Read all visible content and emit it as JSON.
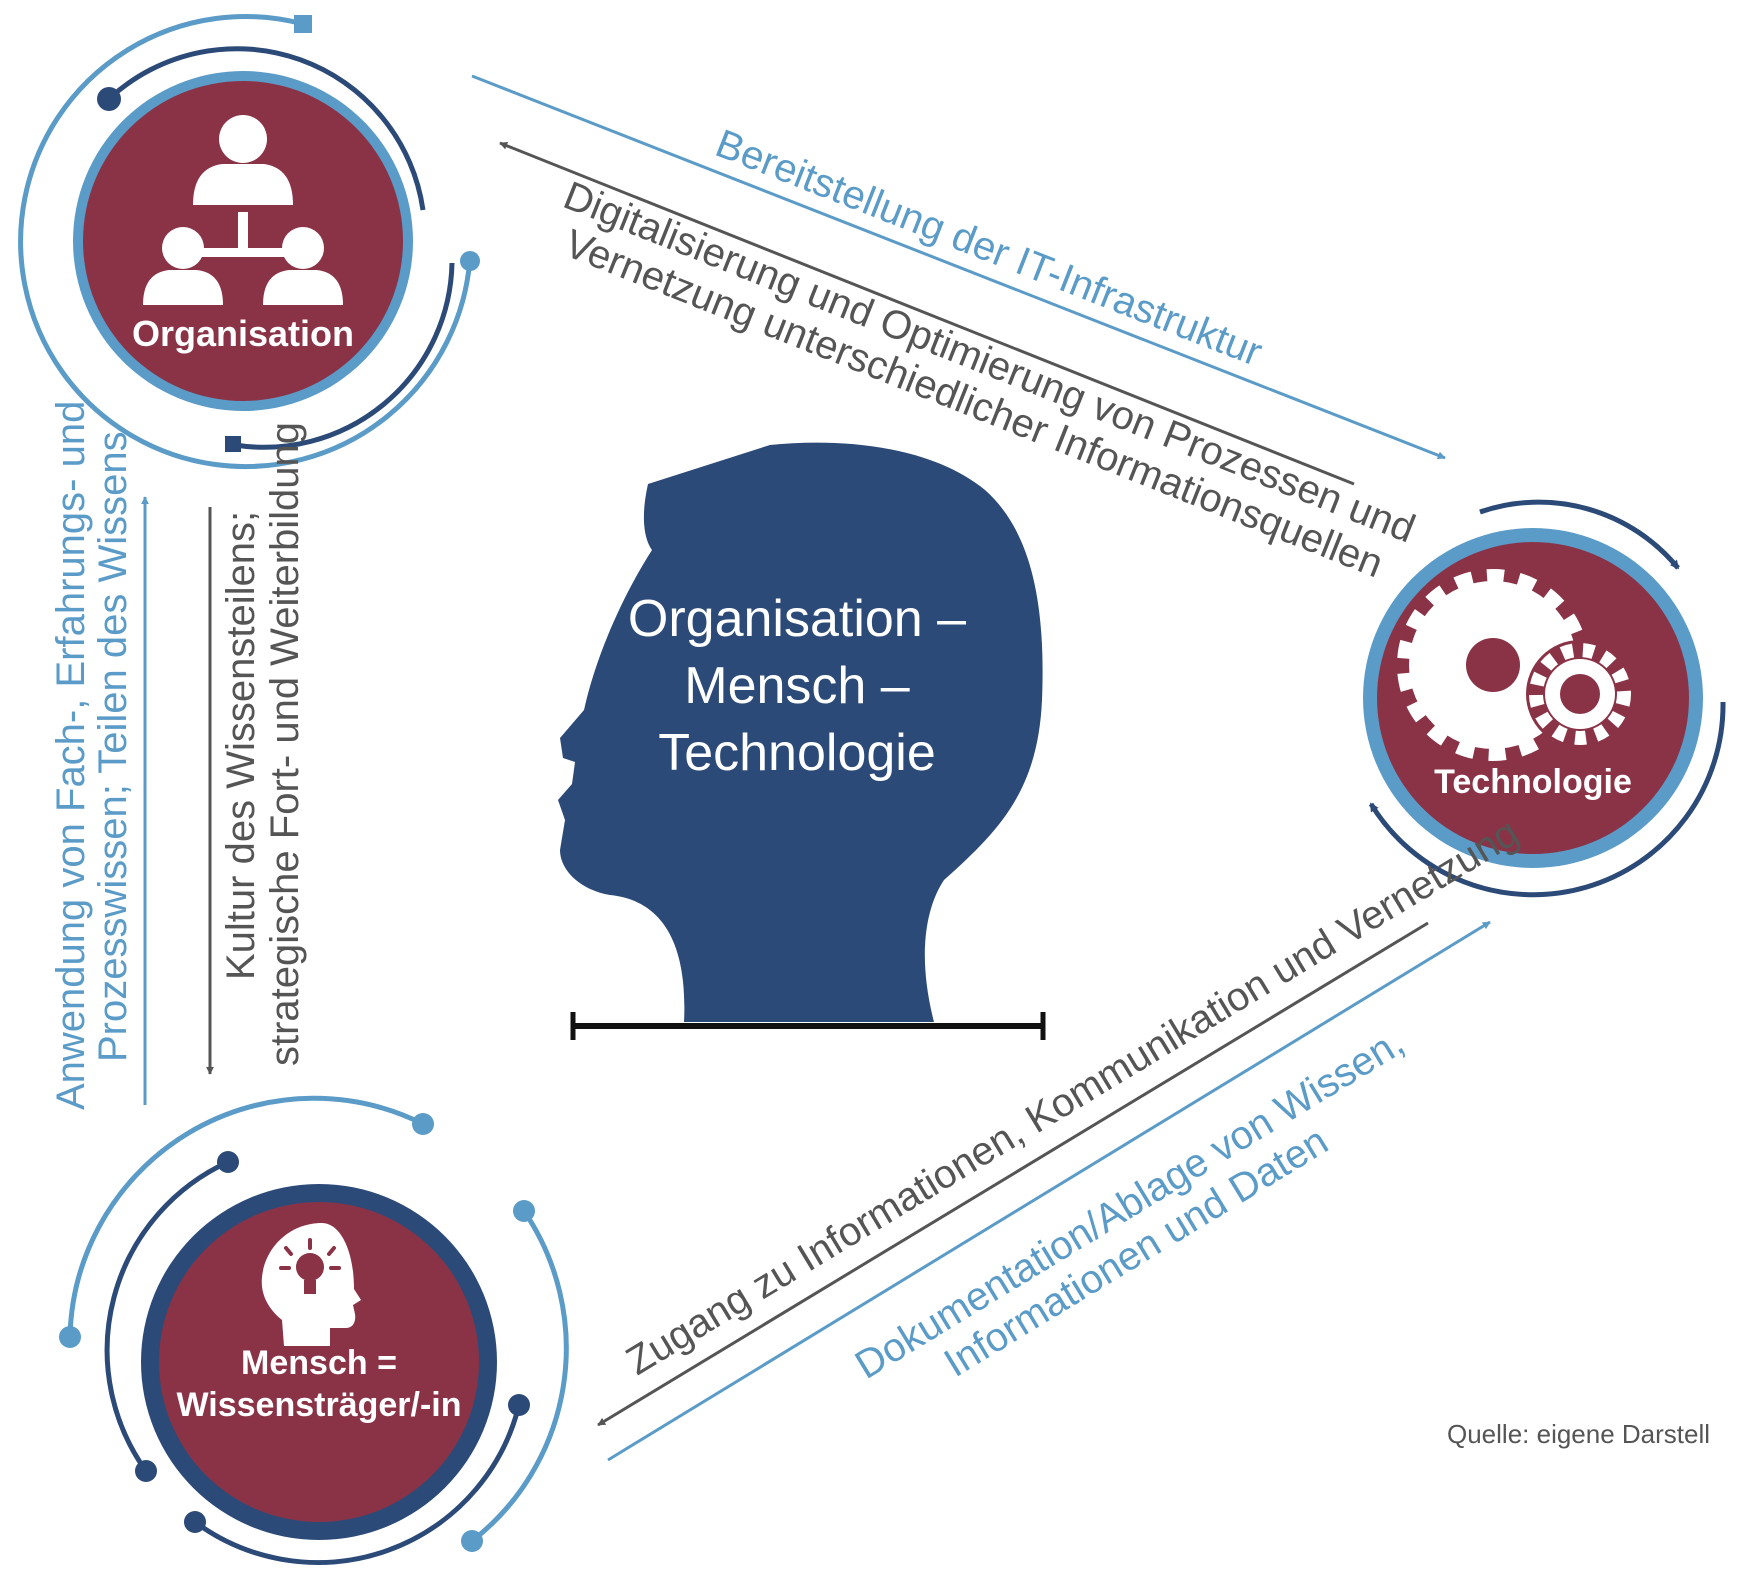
{
  "colors": {
    "node_fill": "#8a3346",
    "ring_light": "#5b9bc8",
    "ring_dark": "#2c4a78",
    "head_fill": "#2c4a78",
    "arrow_light": "#5b9bc8",
    "arrow_dark": "#555555"
  },
  "nodes": {
    "organisation": {
      "label": "Organisation",
      "icon": "hierarchy-icon"
    },
    "technologie": {
      "label": "Technologie",
      "icon": "gears-icon"
    },
    "mensch": {
      "label_line1": "Mensch =",
      "label_line2": "Wissensträger/-in",
      "icon": "head-lightbulb-icon"
    }
  },
  "center": {
    "line1": "Organisation –",
    "line2": "Mensch –",
    "line3": "Technologie",
    "icon": "human-head-silhouette"
  },
  "edges": {
    "org_to_tech": {
      "label": "Bereitstellung der IT-Infrastruktur"
    },
    "tech_to_org": {
      "label_line1": "Digitalisierung und Optimierung von Prozessen und",
      "label_line2": "Vernetzung unterschiedlicher Informationsquellen"
    },
    "mensch_to_org": {
      "label_line1": "Anwendung von Fach-, Erfahrungs- und",
      "label_line2": "Prozesswissen; Teilen des Wissens"
    },
    "org_to_mensch": {
      "label_line1": "Kultur des Wissensteilens;",
      "label_line2": "strategische Fort- und Weiterbildung"
    },
    "tech_to_mensch": {
      "label": "Zugang zu Informationen, Kommunikation und Vernetzung"
    },
    "mensch_to_tech": {
      "label_line1": "Dokumentation/Ablage von Wissen,",
      "label_line2": "Informationen und Daten"
    }
  },
  "source": "Quelle: eigene Darstell"
}
